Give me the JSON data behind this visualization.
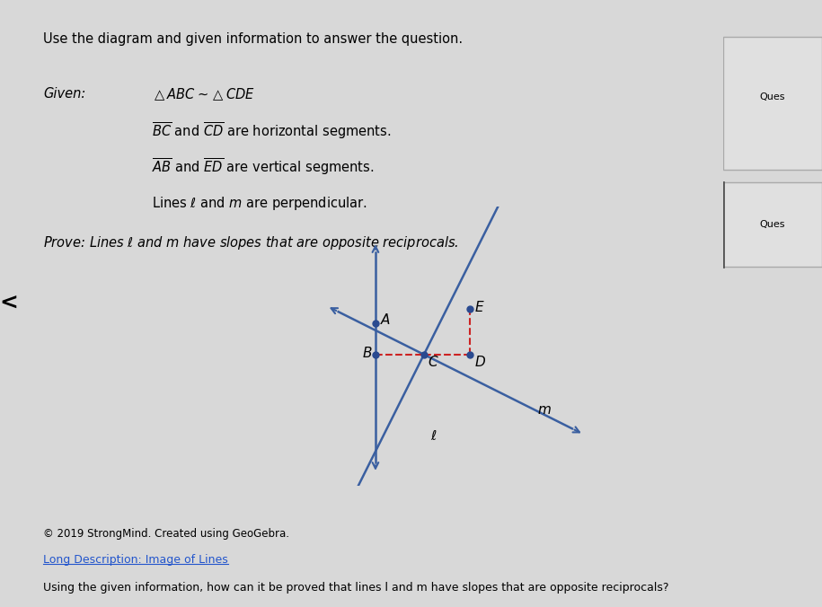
{
  "bg_color": "#d8d8d8",
  "main_bg": "#dcdcdc",
  "title_text": "Use the diagram and given information to answer the question.",
  "bottom_text": "© 2019 StrongMind. Created using GeoGebra.",
  "link_text": "Long Description: Image of Lines",
  "question_text": "Using the given information, how can it be proved that lines l and m have slopes that are opposite reciprocals?",
  "line_color": "#3a5fa0",
  "dashed_color": "#cc2222",
  "point_color": "#2a4a90",
  "slope_l": 2.0,
  "slope_m": -0.5
}
